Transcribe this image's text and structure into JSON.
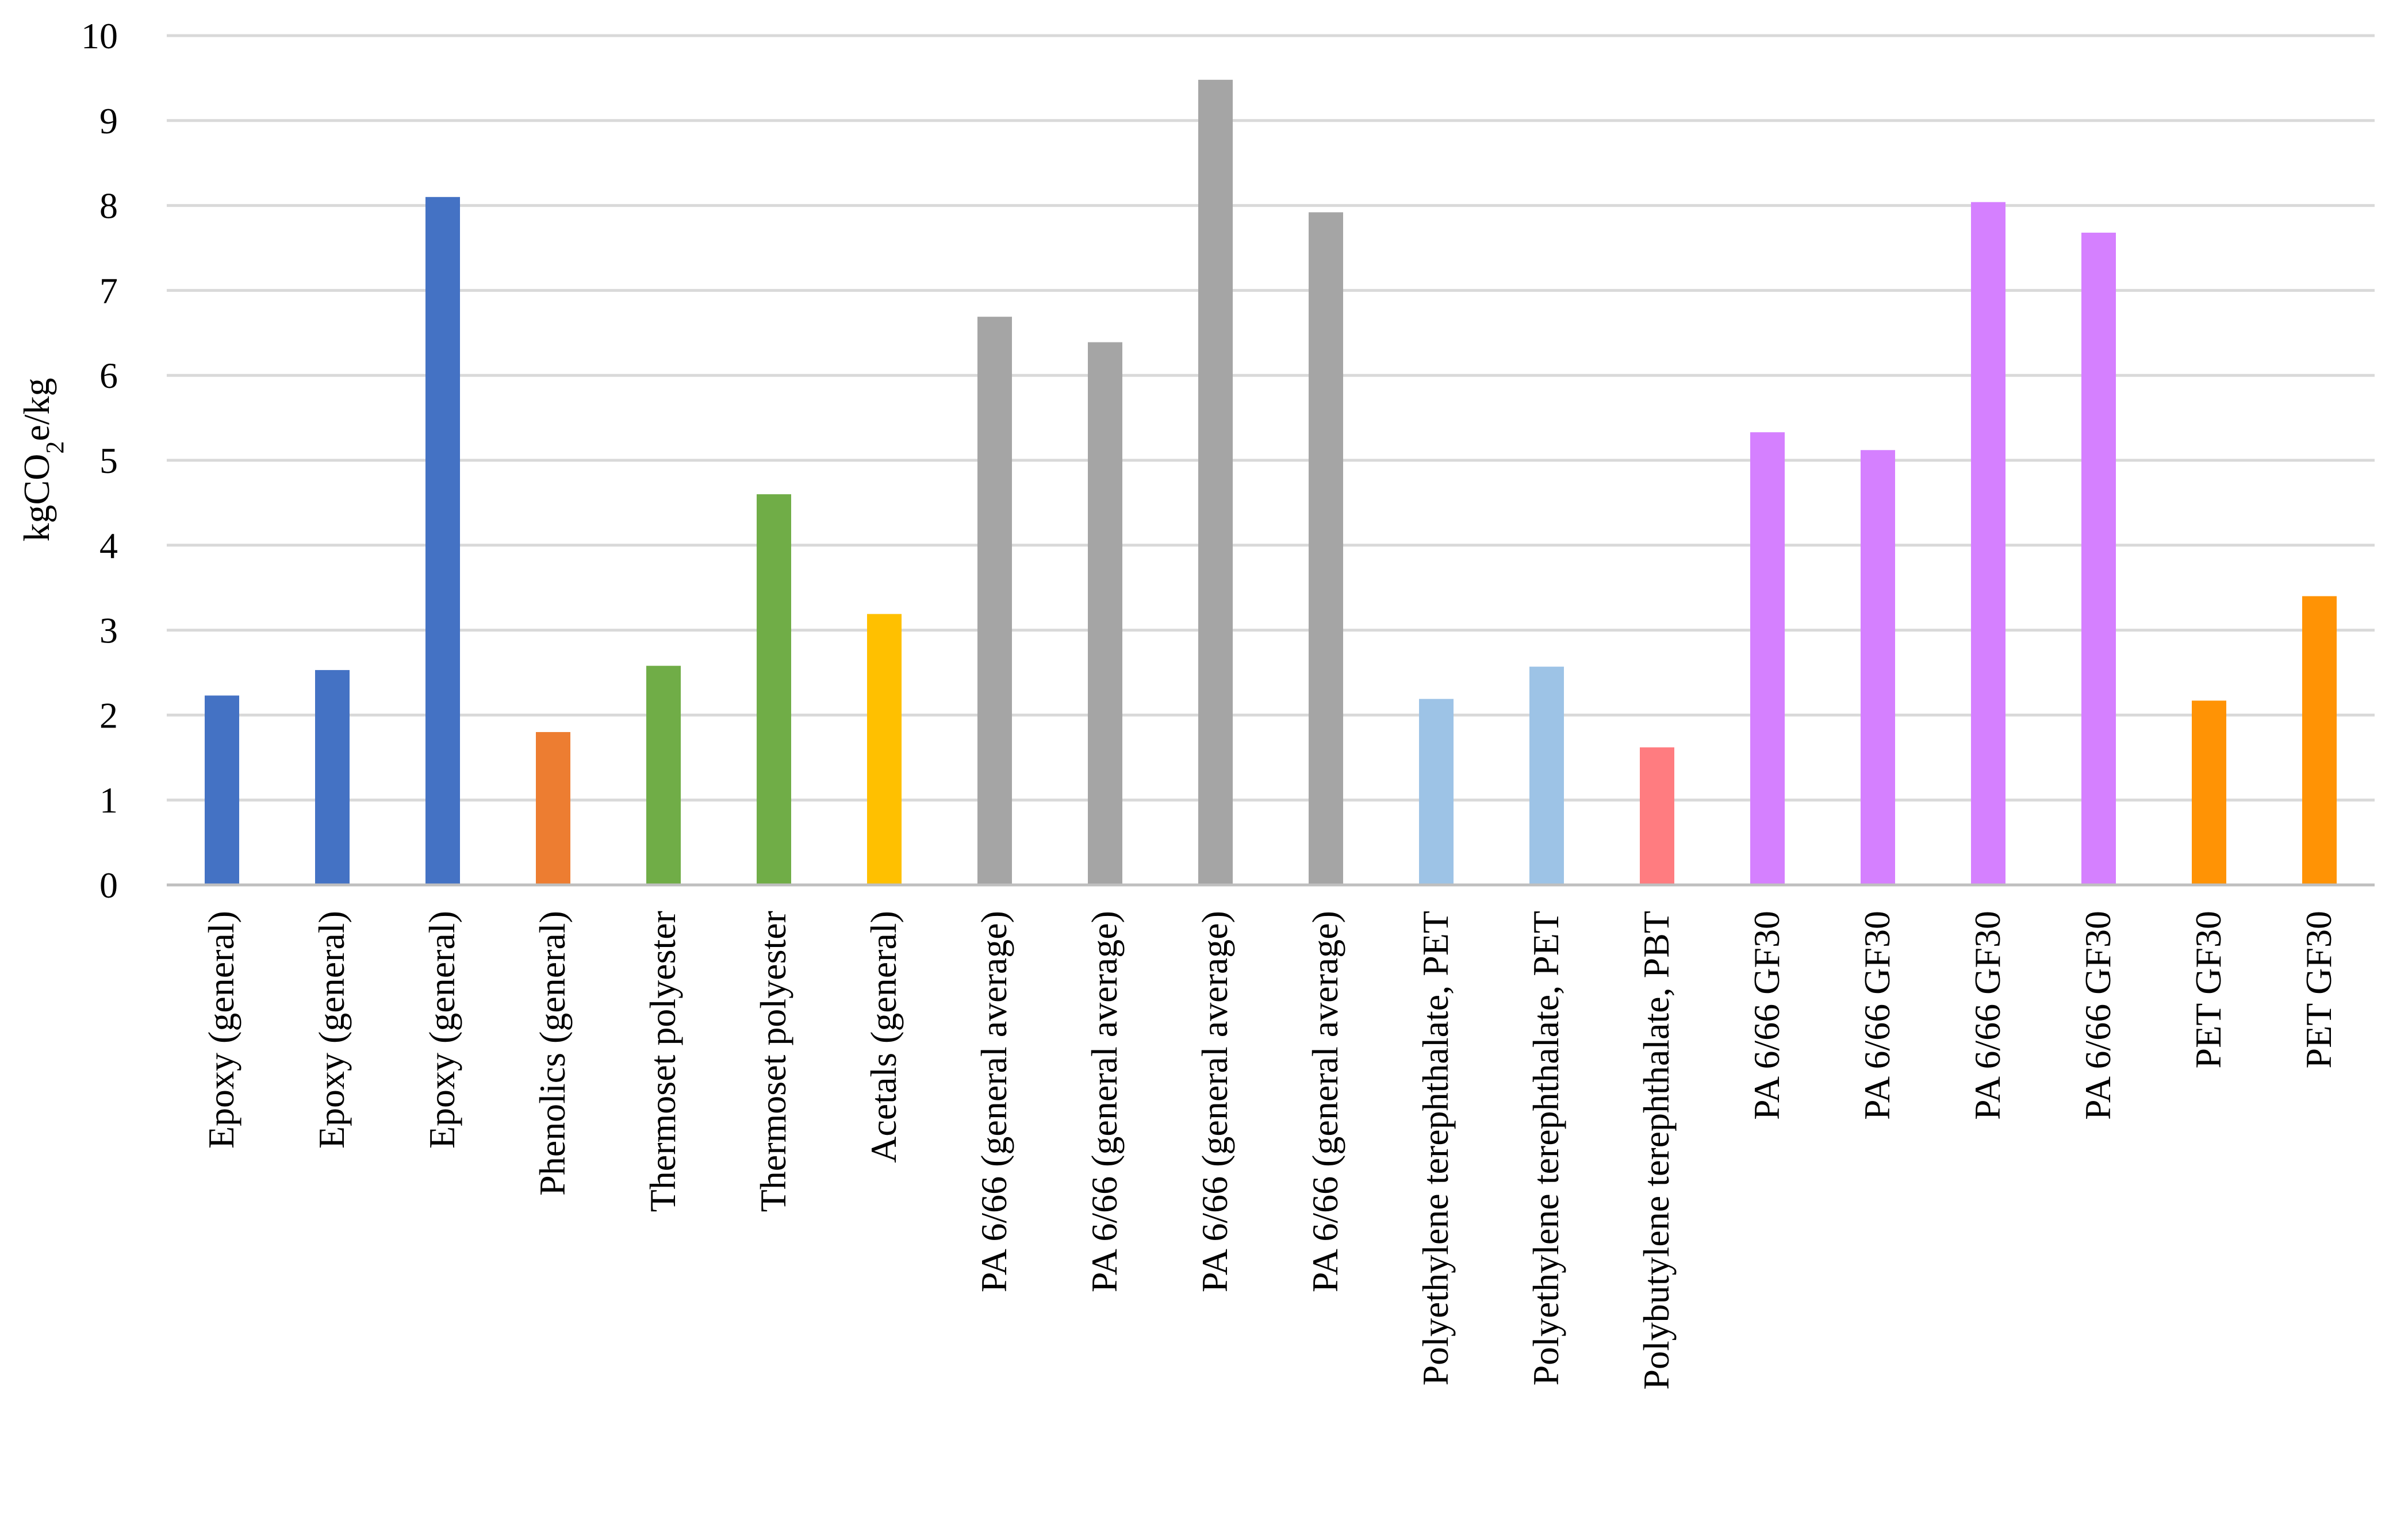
{
  "chart_data": {
    "type": "bar",
    "title": "",
    "xlabel": "",
    "ylabel": {
      "prefix": "kgCO",
      "subscript": "2",
      "suffix": "e/kg"
    },
    "ylim": [
      0,
      10
    ],
    "yticks": [
      0,
      1,
      2,
      3,
      4,
      5,
      6,
      7,
      8,
      9,
      10
    ],
    "grid": true,
    "legend": "none",
    "categories": [
      "Epoxy (general)",
      "Epoxy (general)",
      "Epoxy (general)",
      "Phenolics (general)",
      "Thermoset polyester",
      "Thermoset polyester",
      "Acetals (general)",
      "PA 6/66 (general average)",
      "PA 6/66 (general average)",
      "PA 6/66 (general average)",
      "PA 6/66 (general average)",
      "Polyethylene terephthalate, PET",
      "Polyethylene terephthalate, PET",
      "Polybutylene terephthalate, PBT",
      "PA 6/66 GF30",
      "PA 6/66 GF30",
      "PA 6/66 GF30",
      "PA 6/66 GF30",
      "PET GF30",
      "PET GF30"
    ],
    "values": [
      2.23,
      2.53,
      8.1,
      1.8,
      2.58,
      4.6,
      3.19,
      6.69,
      6.39,
      9.48,
      7.92,
      2.19,
      2.57,
      1.62,
      5.33,
      5.12,
      8.04,
      7.68,
      2.17,
      3.4
    ],
    "colors": [
      "#4472c4",
      "#4472c4",
      "#4472c4",
      "#ed7d31",
      "#70ad47",
      "#70ad47",
      "#ffc000",
      "#a5a5a5",
      "#a5a5a5",
      "#a5a5a5",
      "#a5a5a5",
      "#9dc3e6",
      "#9dc3e6",
      "#ff7c80",
      "#d580ff",
      "#d580ff",
      "#d580ff",
      "#d580ff",
      "#ff9305",
      "#ff9305"
    ]
  }
}
